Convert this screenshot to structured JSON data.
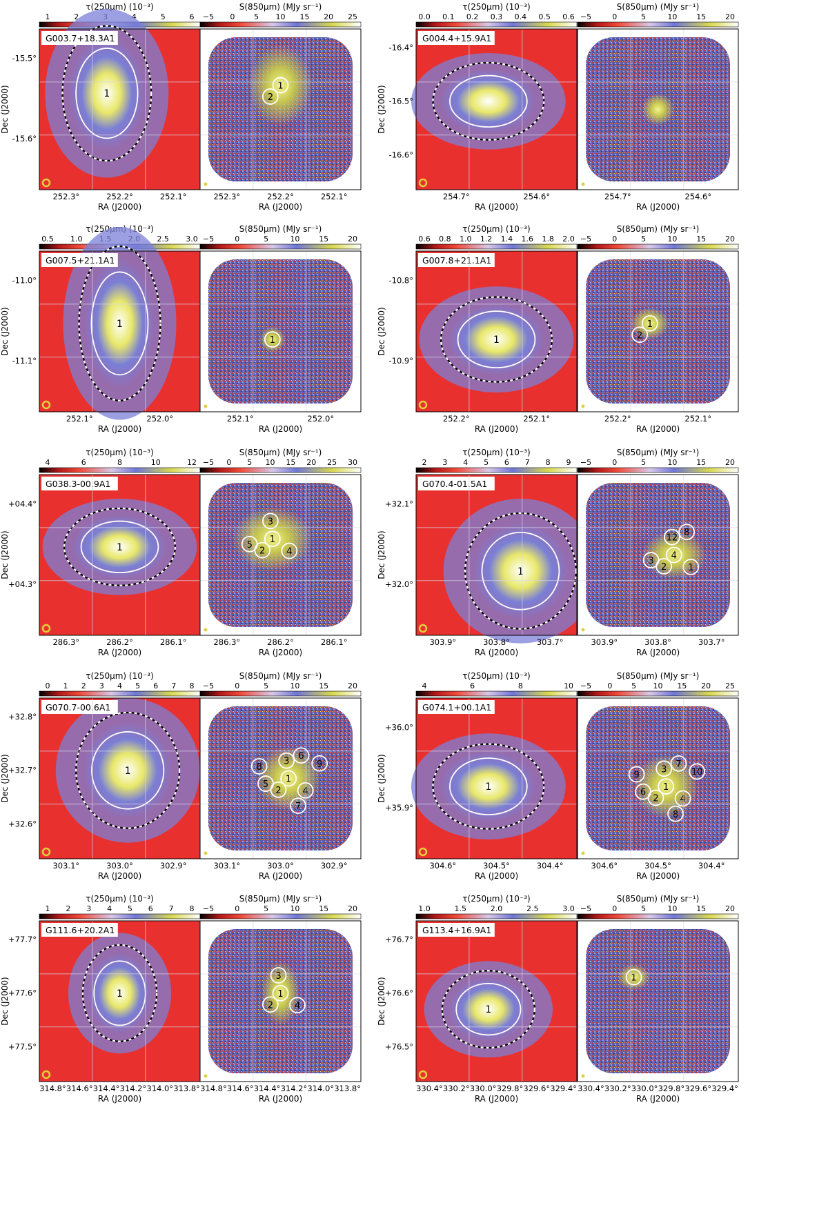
{
  "colorbar_labels": {
    "tau": "τ(250μm) (10⁻³)",
    "s850": "S(850μm) (MJy sr⁻¹)"
  },
  "axis_labels": {
    "ra": "RA (J2000)",
    "dec": "Dec (J2000)"
  },
  "colors": {
    "map_low": "#000000",
    "map_red": "#e8312f",
    "map_mid": "#7b80d8",
    "map_high": "#e3e36b",
    "map_top": "#ffffff",
    "grid": "#d8d8e8"
  },
  "panels": [
    {
      "field": "G003.7+18.3A1",
      "tau_ticks": [
        "1",
        "2",
        "3",
        "4",
        "5",
        "6"
      ],
      "s850_ticks": [
        "−5",
        "0",
        "5",
        "10",
        "15",
        "20",
        "25"
      ],
      "dec_ticks": [
        "-15.5°",
        "-15.6°"
      ],
      "ra_ticks_left": [
        "252.3°",
        "252.2°",
        "252.1°"
      ],
      "ra_ticks_right": [
        "252.3°",
        "252.2°",
        "252.1°"
      ],
      "tau_clumps": [
        "1"
      ],
      "s850_clumps": [
        "1",
        "2"
      ]
    },
    {
      "field": "G004.4+15.9A1",
      "tau_ticks": [
        "0.0",
        "0.1",
        "0.2",
        "0.3",
        "0.4",
        "0.5",
        "0.6"
      ],
      "s850_ticks": [
        "−5",
        "0",
        "5",
        "10",
        "15",
        "20"
      ],
      "dec_ticks": [
        "-16.4°",
        "-16.5°",
        "-16.6°"
      ],
      "ra_ticks_left": [
        "254.7°",
        "254.6°"
      ],
      "ra_ticks_right": [
        "254.7°",
        "254.6°"
      ],
      "tau_clumps": [],
      "s850_clumps": []
    },
    {
      "field": "G007.5+21.1A1",
      "tau_ticks": [
        "0.5",
        "1.0",
        "1.5",
        "2.0",
        "2.5",
        "3.0"
      ],
      "s850_ticks": [
        "−5",
        "0",
        "5",
        "10",
        "15",
        "20"
      ],
      "dec_ticks": [
        "-11.0°",
        "-11.1°"
      ],
      "ra_ticks_left": [
        "252.1°",
        "252.0°"
      ],
      "ra_ticks_right": [
        "252.1°",
        "252.0°"
      ],
      "tau_clumps": [
        "1"
      ],
      "s850_clumps": [
        "1"
      ]
    },
    {
      "field": "G007.8+21.1A1",
      "tau_ticks": [
        "0.6",
        "0.8",
        "1.0",
        "1.2",
        "1.4",
        "1.6",
        "1.8",
        "2.0"
      ],
      "s850_ticks": [
        "−5",
        "0",
        "5",
        "10",
        "15",
        "20"
      ],
      "dec_ticks": [
        "-10.8°",
        "-10.9°"
      ],
      "ra_ticks_left": [
        "252.2°",
        "252.1°"
      ],
      "ra_ticks_right": [
        "252.2°",
        "252.1°"
      ],
      "tau_clumps": [
        "1"
      ],
      "s850_clumps": [
        "1",
        "2"
      ]
    },
    {
      "field": "G038.3-00.9A1",
      "tau_ticks": [
        "4",
        "6",
        "8",
        "10",
        "12"
      ],
      "s850_ticks": [
        "−5",
        "0",
        "5",
        "10",
        "15",
        "20",
        "25",
        "30"
      ],
      "dec_ticks": [
        "+04.4°",
        "+04.3°"
      ],
      "ra_ticks_left": [
        "286.3°",
        "286.2°",
        "286.1°"
      ],
      "ra_ticks_right": [
        "286.3°",
        "286.2°",
        "286.1°"
      ],
      "tau_clumps": [
        "1"
      ],
      "s850_clumps": [
        "1",
        "2",
        "3",
        "4",
        "5"
      ]
    },
    {
      "field": "G070.4-01.5A1",
      "tau_ticks": [
        "2",
        "3",
        "4",
        "5",
        "6",
        "7",
        "8",
        "9"
      ],
      "s850_ticks": [
        "−5",
        "0",
        "5",
        "10",
        "15",
        "20"
      ],
      "dec_ticks": [
        "+32.1°",
        "+32.0°"
      ],
      "ra_ticks_left": [
        "303.9°",
        "303.8°",
        "303.7°"
      ],
      "ra_ticks_right": [
        "303.9°",
        "303.8°",
        "303.7°"
      ],
      "tau_clumps": [
        "1"
      ],
      "s850_clumps": [
        "4",
        "2",
        "12",
        "1",
        "3",
        "8"
      ]
    },
    {
      "field": "G070.7-00.6A1",
      "tau_ticks": [
        "0",
        "1",
        "2",
        "3",
        "4",
        "5",
        "6",
        "7",
        "8"
      ],
      "s850_ticks": [
        "−5",
        "0",
        "5",
        "10",
        "15",
        "20"
      ],
      "dec_ticks": [
        "+32.8°",
        "+32.7°",
        "+32.6°"
      ],
      "ra_ticks_left": [
        "303.1°",
        "303.0°",
        "302.9°"
      ],
      "ra_ticks_right": [
        "303.1°",
        "303.0°",
        "302.9°"
      ],
      "tau_clumps": [
        "1"
      ],
      "s850_clumps": [
        "1",
        "2",
        "3",
        "4",
        "5",
        "6",
        "7",
        "8",
        "9"
      ]
    },
    {
      "field": "G074.1+00.1A1",
      "tau_ticks": [
        "4",
        "6",
        "8",
        "10"
      ],
      "s850_ticks": [
        "−5",
        "0",
        "5",
        "10",
        "15",
        "20",
        "25"
      ],
      "dec_ticks": [
        "+36.0°",
        "+35.9°"
      ],
      "ra_ticks_left": [
        "304.6°",
        "304.5°",
        "304.4°"
      ],
      "ra_ticks_right": [
        "304.6°",
        "304.5°",
        "304.4°"
      ],
      "tau_clumps": [
        "1"
      ],
      "s850_clumps": [
        "1",
        "2",
        "3",
        "4",
        "6",
        "7",
        "8",
        "9",
        "10"
      ]
    },
    {
      "field": "G111.6+20.2A1",
      "tau_ticks": [
        "1",
        "2",
        "3",
        "4",
        "5",
        "6",
        "7",
        "8"
      ],
      "s850_ticks": [
        "−5",
        "0",
        "5",
        "10",
        "15",
        "20"
      ],
      "dec_ticks": [
        "+77.7°",
        "+77.6°",
        "+77.5°"
      ],
      "ra_ticks_left": [
        "314.8°",
        "314.6°",
        "314.4°",
        "314.2°",
        "314.0°",
        "313.8°"
      ],
      "ra_ticks_right": [
        "314.8°",
        "314.6°",
        "314.4°",
        "314.2°",
        "314.0°",
        "313.8°"
      ],
      "tau_clumps": [
        "1"
      ],
      "s850_clumps": [
        "1",
        "2",
        "3",
        "4"
      ]
    },
    {
      "field": "G113.4+16.9A1",
      "tau_ticks": [
        "1.0",
        "1.5",
        "2.0",
        "2.5",
        "3.0"
      ],
      "s850_ticks": [
        "−5",
        "0",
        "5",
        "10",
        "15",
        "20"
      ],
      "dec_ticks": [
        "+76.7°",
        "+76.6°",
        "+76.5°"
      ],
      "ra_ticks_left": [
        "330.4°",
        "330.2°",
        "330.0°",
        "329.8°",
        "329.6°",
        "329.4°"
      ],
      "ra_ticks_right": [
        "330.4°",
        "330.2°",
        "330.0°",
        "329.8°",
        "329.6°",
        "329.4°"
      ],
      "tau_clumps": [
        "1"
      ],
      "s850_clumps": [
        "1"
      ]
    }
  ]
}
